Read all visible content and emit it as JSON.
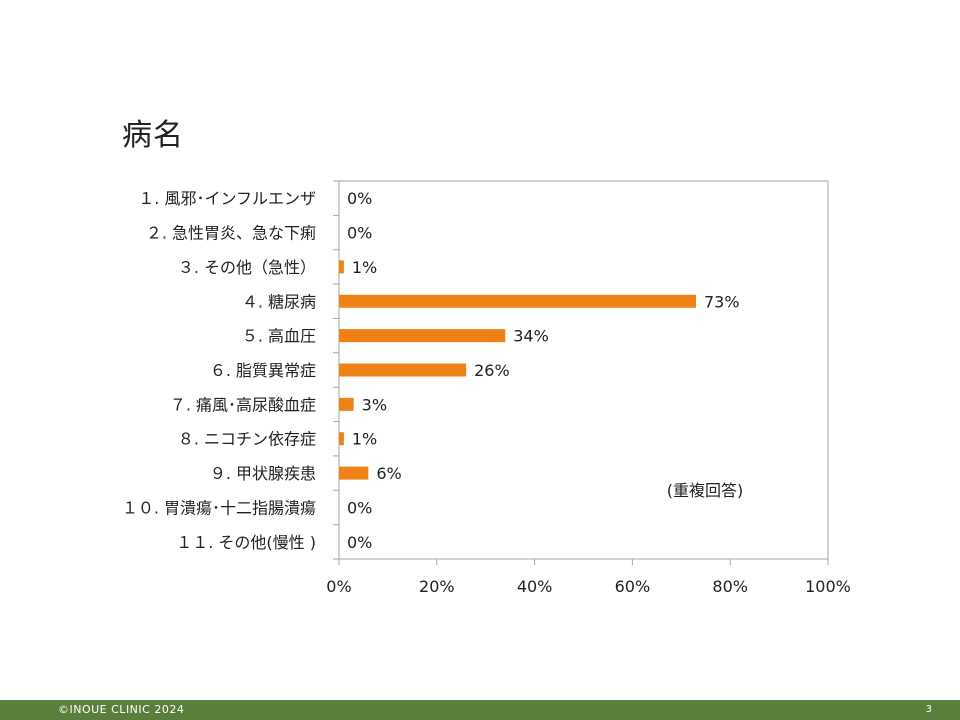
{
  "slide": {
    "title": "病名",
    "footer_text": "©INOUE CLINIC 2024",
    "page_number": "3"
  },
  "colors": {
    "bar": "#ee8216",
    "footer": "#5a7f3c",
    "axis": "#a6a6a6"
  },
  "chart_data": {
    "type": "bar",
    "orientation": "horizontal",
    "categories": [
      "１. 風邪･インフルエンザ",
      "２. 急性胃炎、急な下痢",
      "３. その他（急性）",
      "４. 糖尿病",
      "５. 高血圧",
      "６. 脂質異常症",
      "７. 痛風･高尿酸血症",
      "８. ニコチン依存症",
      "９. 甲状腺疾患",
      "１０. 胃潰瘍･十二指腸潰瘍",
      "１１. その他(慢性 )"
    ],
    "values": [
      0,
      0,
      1,
      73,
      34,
      26,
      3,
      1,
      6,
      0,
      0
    ],
    "value_labels": [
      "0%",
      "0%",
      "1%",
      "73%",
      "34%",
      "26%",
      "3%",
      "1%",
      "6%",
      "0%",
      "0%"
    ],
    "xlim": [
      0,
      100
    ],
    "xticks": [
      0,
      20,
      40,
      60,
      80,
      100
    ],
    "xtick_labels": [
      "0%",
      "20%",
      "40%",
      "60%",
      "80%",
      "100%"
    ],
    "annotation": "(重複回答)",
    "grid": false,
    "legend": "none"
  }
}
